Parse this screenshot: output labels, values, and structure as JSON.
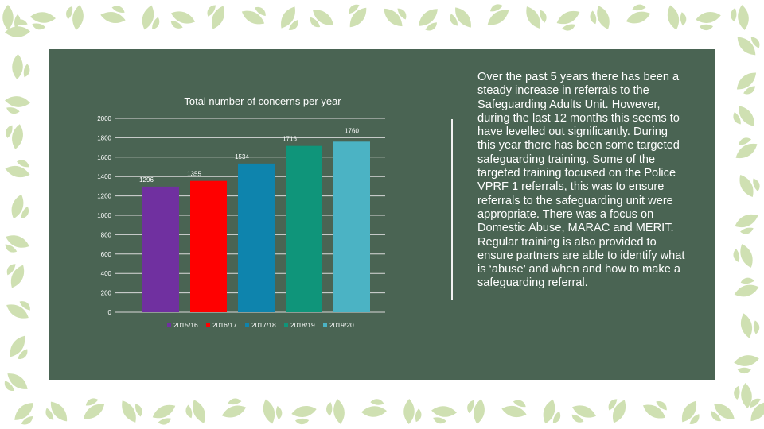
{
  "slide": {
    "body_text": "Over the past 5 years there has been a steady increase in referrals to the Safeguarding Adults Unit. However, during the last 12 months this seems to have levelled out significantly.  During this year there has been some targeted safeguarding training. Some of the targeted training focused on the Police VPRF 1 referrals, this was to ensure referrals to the safeguarding unit were appropriate.  There was a focus on Domestic Abuse, MARAC and MERIT.   Regular training is also provided to ensure partners are able to identify what is ‘abuse’ and when and how to make a safeguarding referral."
  },
  "colors": {
    "panel": "#4a6453",
    "page_background": "#ffffff",
    "leaf_pattern": "#cfe0b2",
    "gridline": "#d9d9d9",
    "text": "#ffffff"
  },
  "chart_data": {
    "type": "bar",
    "title": "Total number of concerns per year",
    "categories": [
      "2015/16",
      "2016/17",
      "2017/18",
      "2018/19",
      "2019/20"
    ],
    "values": [
      1296,
      1355,
      1534,
      1716,
      1760
    ],
    "bar_colors": [
      "#7030a0",
      "#ff0000",
      "#0e84ad",
      "#0f957a",
      "#4bb3c4"
    ],
    "ylim": [
      0,
      2000
    ],
    "yticks": [
      0,
      200,
      400,
      600,
      800,
      1000,
      1200,
      1400,
      1600,
      1800,
      2000
    ],
    "xlabel": "",
    "ylabel": "",
    "grid": true,
    "legend": "bottom"
  }
}
